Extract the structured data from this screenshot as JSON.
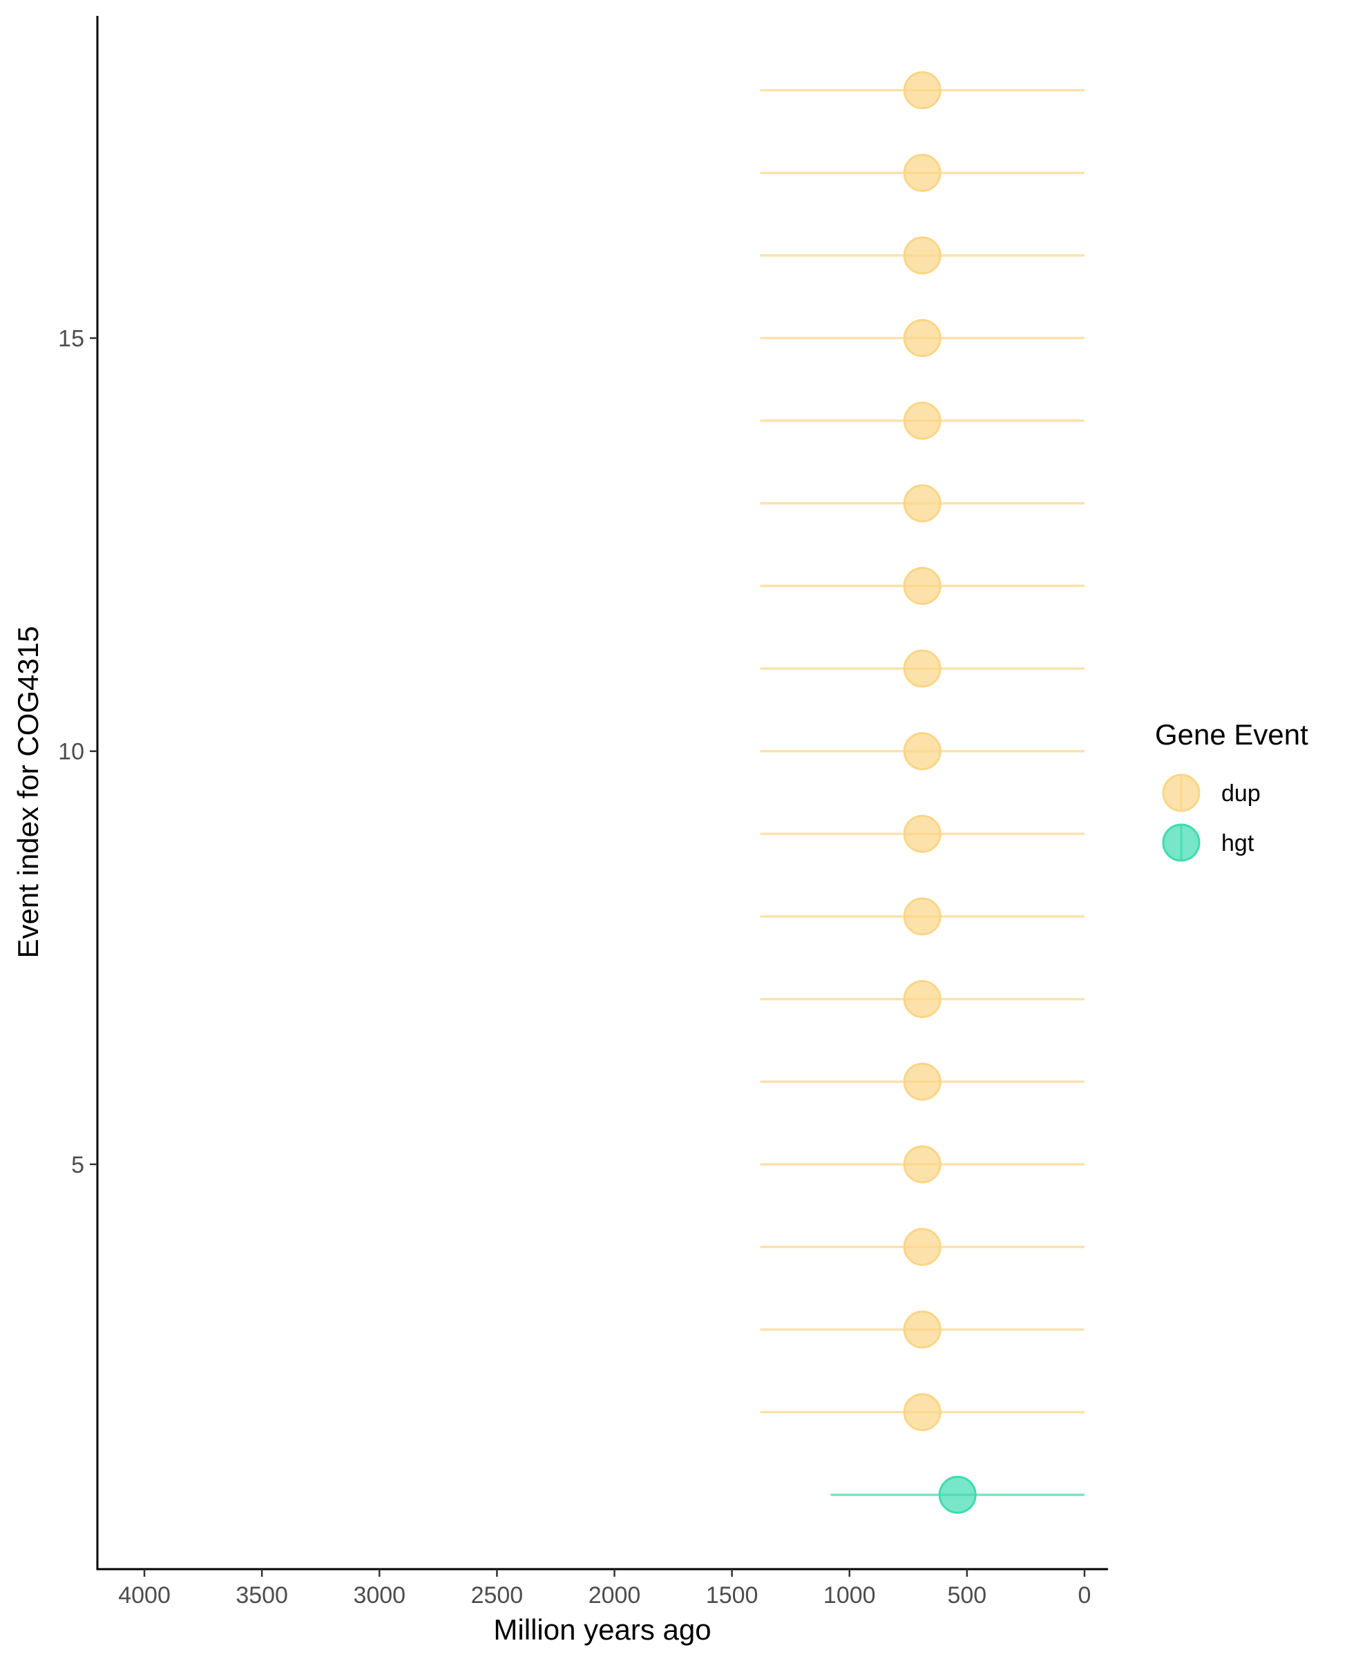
{
  "chart_data": {
    "type": "scatter",
    "title": "",
    "xlabel": "Million years ago",
    "ylabel": "Event index for COG4315",
    "x_reversed": true,
    "xlim": [
      4200,
      -100
    ],
    "ylim": [
      0.1,
      18.9
    ],
    "x_ticks": [
      4000,
      3500,
      3000,
      2500,
      2000,
      1500,
      1000,
      500,
      0
    ],
    "x_tick_labels": [
      "4000",
      "3500",
      "3000",
      "2500",
      "2000",
      "1500",
      "1000",
      "500",
      "0"
    ],
    "y_ticks": [
      5,
      10,
      15
    ],
    "y_tick_labels": [
      "5",
      "10",
      "15"
    ],
    "grid": false,
    "legend": {
      "title": "Gene Event",
      "position": "right",
      "entries": [
        {
          "label": "dup",
          "color": "#FBD586"
        },
        {
          "label": "hgt",
          "color": "#3EDCB0"
        }
      ]
    },
    "series": [
      {
        "name": "dup",
        "color": "#FBD586",
        "points": [
          {
            "y": 2,
            "x": 690,
            "xmin": 0,
            "xmax": 1380
          },
          {
            "y": 3,
            "x": 690,
            "xmin": 0,
            "xmax": 1380
          },
          {
            "y": 4,
            "x": 690,
            "xmin": 0,
            "xmax": 1380
          },
          {
            "y": 5,
            "x": 690,
            "xmin": 0,
            "xmax": 1380
          },
          {
            "y": 6,
            "x": 690,
            "xmin": 0,
            "xmax": 1380
          },
          {
            "y": 7,
            "x": 690,
            "xmin": 0,
            "xmax": 1380
          },
          {
            "y": 8,
            "x": 690,
            "xmin": 0,
            "xmax": 1380
          },
          {
            "y": 9,
            "x": 690,
            "xmin": 0,
            "xmax": 1380
          },
          {
            "y": 10,
            "x": 690,
            "xmin": 0,
            "xmax": 1380
          },
          {
            "y": 11,
            "x": 690,
            "xmin": 0,
            "xmax": 1380
          },
          {
            "y": 12,
            "x": 690,
            "xmin": 0,
            "xmax": 1380
          },
          {
            "y": 13,
            "x": 690,
            "xmin": 0,
            "xmax": 1380
          },
          {
            "y": 14,
            "x": 690,
            "xmin": 0,
            "xmax": 1380
          },
          {
            "y": 15,
            "x": 690,
            "xmin": 0,
            "xmax": 1380
          },
          {
            "y": 16,
            "x": 690,
            "xmin": 0,
            "xmax": 1380
          },
          {
            "y": 17,
            "x": 690,
            "xmin": 0,
            "xmax": 1380
          },
          {
            "y": 18,
            "x": 690,
            "xmin": 0,
            "xmax": 1380
          }
        ]
      },
      {
        "name": "hgt",
        "color": "#3EDCB0",
        "points": [
          {
            "y": 1,
            "x": 540,
            "xmin": 0,
            "xmax": 1080
          }
        ]
      }
    ]
  }
}
